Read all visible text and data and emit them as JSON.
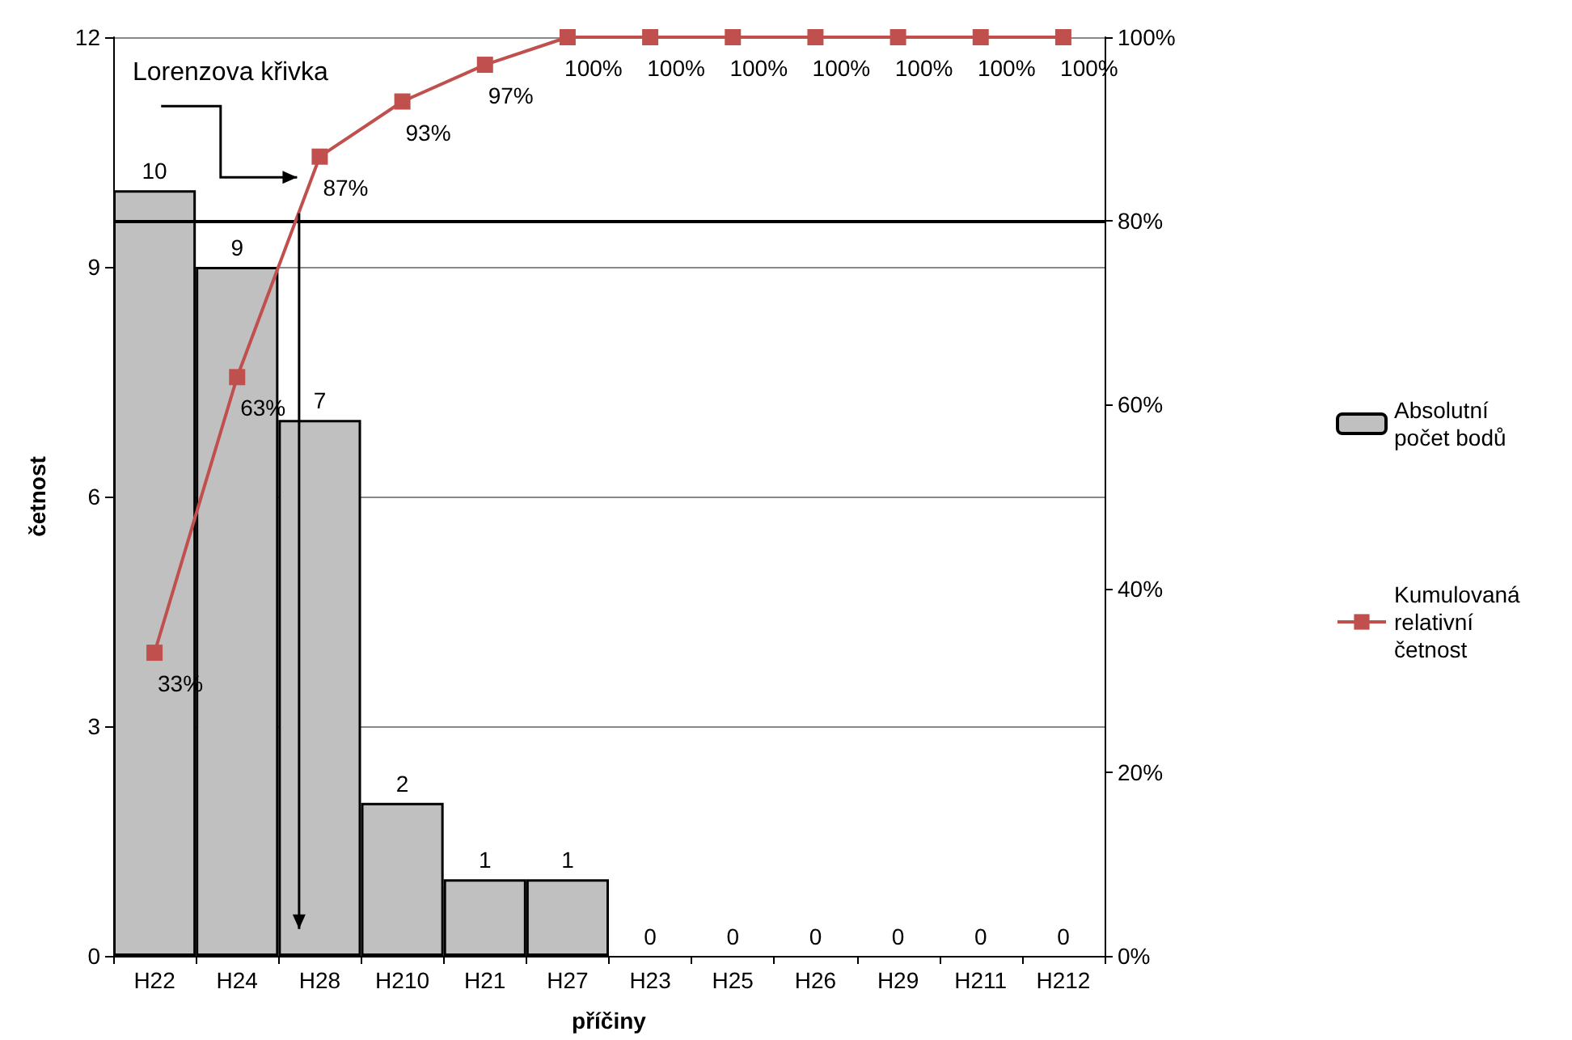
{
  "chart_data": {
    "type": "bar",
    "xlabel": "příčiny",
    "ylabel": "četnost",
    "categories": [
      "H22",
      "H24",
      "H28",
      "H210",
      "H21",
      "H27",
      "H23",
      "H25",
      "H26",
      "H29",
      "H211",
      "H212"
    ],
    "series": [
      {
        "name": "Absolutní počet bodů",
        "color": "#c0c0c0",
        "values": [
          10,
          9,
          7,
          2,
          1,
          1,
          0,
          0,
          0,
          0,
          0,
          0
        ]
      },
      {
        "name": "Kumulovaná relativní četnost",
        "type": "line",
        "axis": "y2",
        "color": "#c0504d",
        "marker": "square",
        "values": [
          33,
          63,
          87,
          93,
          97,
          100,
          100,
          100,
          100,
          100,
          100,
          100
        ],
        "value_labels": [
          "33%",
          "63%",
          "87%",
          "93%",
          "97%",
          "100%",
          "100%",
          "100%",
          "100%",
          "100%",
          "100%",
          "100%"
        ]
      }
    ],
    "data_labels": true,
    "ylim": [
      0,
      12
    ],
    "yticks": [
      0,
      3,
      6,
      9,
      12
    ],
    "y2lim": [
      0,
      100
    ],
    "y2ticks": [
      {
        "value": 0,
        "label": "0%"
      },
      {
        "value": 20,
        "label": "20%"
      },
      {
        "value": 40,
        "label": "40%"
      },
      {
        "value": 60,
        "label": "60%"
      },
      {
        "value": 80,
        "label": "80%"
      },
      {
        "value": 100,
        "label": "100%"
      }
    ],
    "ref_lines": [
      {
        "axis": "y2",
        "value": 80,
        "color": "#000000"
      }
    ],
    "annotations": [
      "Lorenzova křivka"
    ],
    "grid": "y",
    "legend": "right"
  }
}
